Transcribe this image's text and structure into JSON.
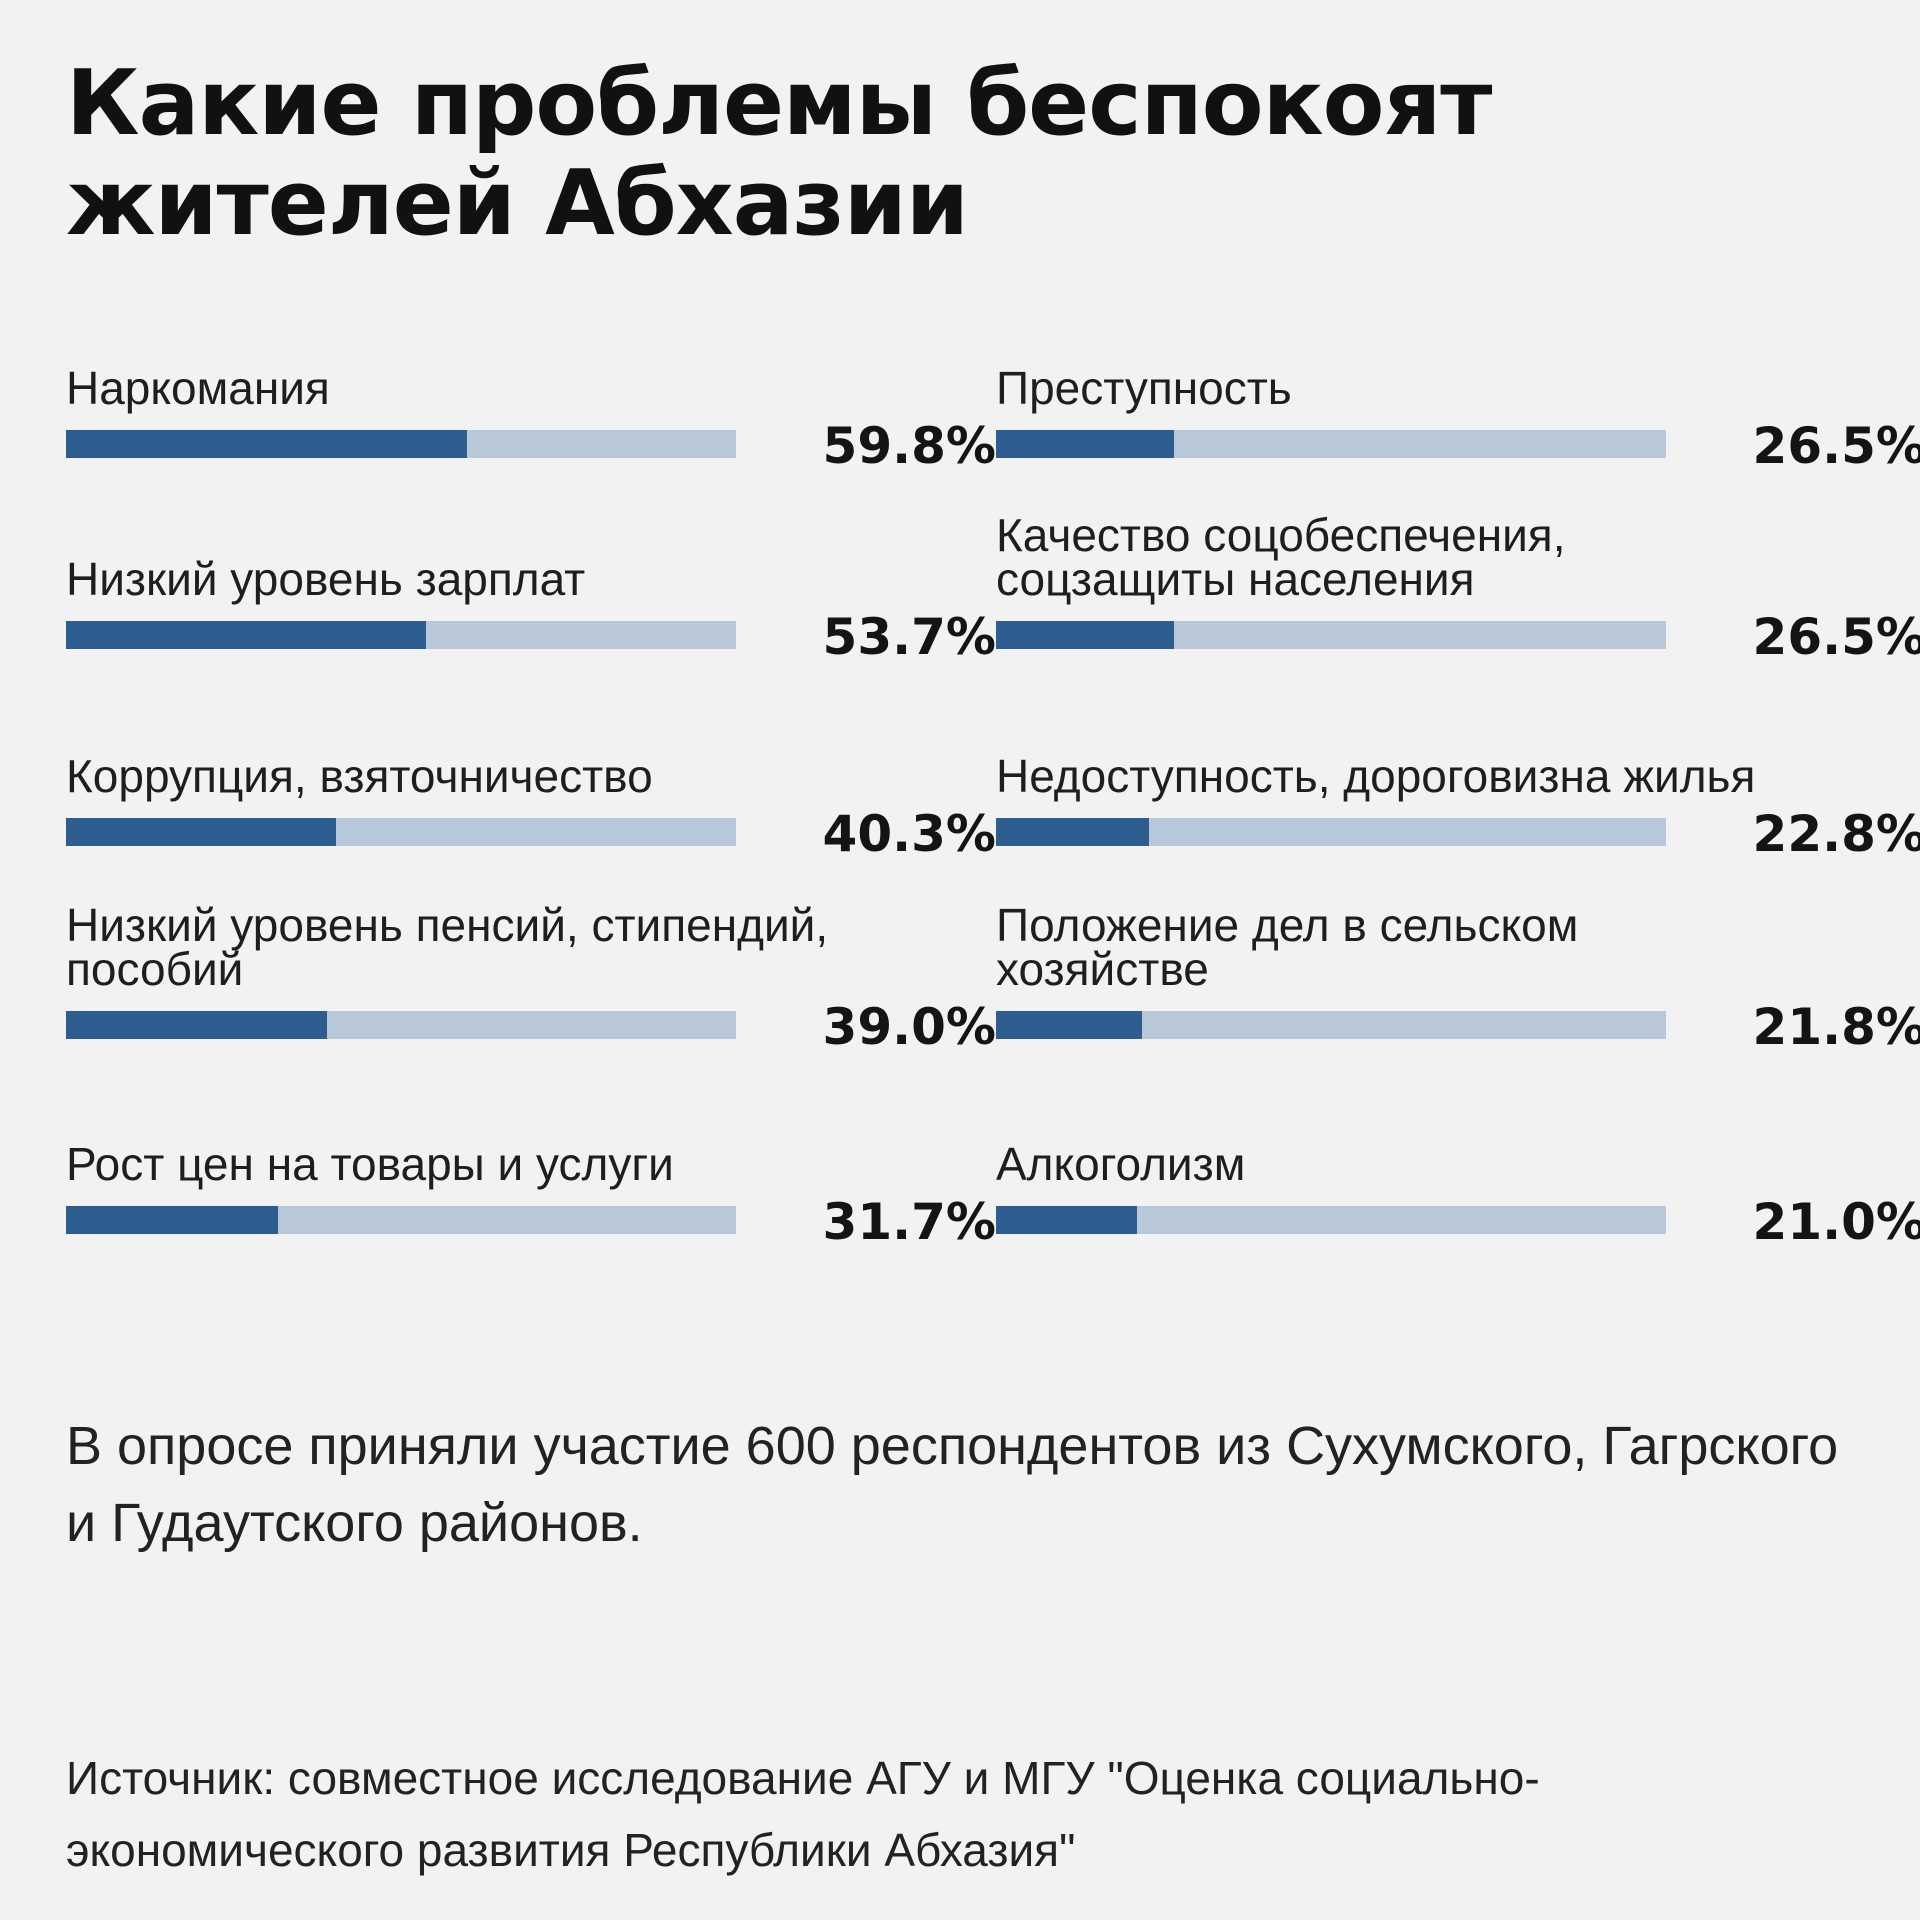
{
  "title": "Какие проблемы беспокоят жителей Абхазии",
  "chart_data": {
    "type": "bar",
    "title": "Какие проблемы беспокоят жителей Абхазии",
    "orientation": "horizontal",
    "value_unit": "%",
    "xlim": [
      0,
      100
    ],
    "grid": false,
    "colors": {
      "fill": "#2e5e90",
      "track": "#b9c8d8"
    },
    "categories": [
      "Наркомания",
      "Низкий уровень зарплат",
      "Коррупция, взяточничество",
      "Низкий уровень пенсий, стипендий, пособий",
      "Рост цен на товары и услуги",
      "Преступность",
      "Качество соцобеспечения, соцзащиты населения",
      "Недоступность, дороговизна жилья",
      "Положение дел в сельском хозяйстве",
      "Алкоголизм"
    ],
    "values": [
      59.8,
      53.7,
      40.3,
      39.0,
      31.7,
      26.5,
      26.5,
      22.8,
      21.8,
      21.0
    ],
    "value_labels": [
      "59.8%",
      "53.7%",
      "40.3%",
      "39.0%",
      "31.7%",
      "26.5%",
      "26.5%",
      "22.8%",
      "21.8%",
      "21.0%"
    ],
    "items": [
      {
        "label": "Наркомания",
        "value": 59.8,
        "value_label": "59.8%"
      },
      {
        "label": "Низкий уровень зарплат",
        "value": 53.7,
        "value_label": "53.7%"
      },
      {
        "label": "Коррупция, взяточничество",
        "value": 40.3,
        "value_label": "40.3%"
      },
      {
        "label": "Низкий уровень пенсий, стипендий, пособий",
        "value": 39.0,
        "value_label": "39.0%"
      },
      {
        "label": "Рост цен на товары и услуги",
        "value": 31.7,
        "value_label": "31.7%"
      },
      {
        "label": "Преступность",
        "value": 26.5,
        "value_label": "26.5%"
      },
      {
        "label": "Качество соцобеспечения, соцзащиты населения",
        "value": 26.5,
        "value_label": "26.5%"
      },
      {
        "label": "Недоступность, дороговизна жилья",
        "value": 22.8,
        "value_label": "22.8%"
      },
      {
        "label": "Положение дел в сельском хозяйстве",
        "value": 21.8,
        "value_label": "21.8%"
      },
      {
        "label": "Алкоголизм",
        "value": 21.0,
        "value_label": "21.0%"
      }
    ]
  },
  "note": "В опросе приняли участие 600 респондентов из Сухумского, Гагрского и Гудаутского районов.",
  "source": "Источник: совместное исследование АГУ и МГУ \"Оценка социально-экономического развития Республики Абхазия\""
}
